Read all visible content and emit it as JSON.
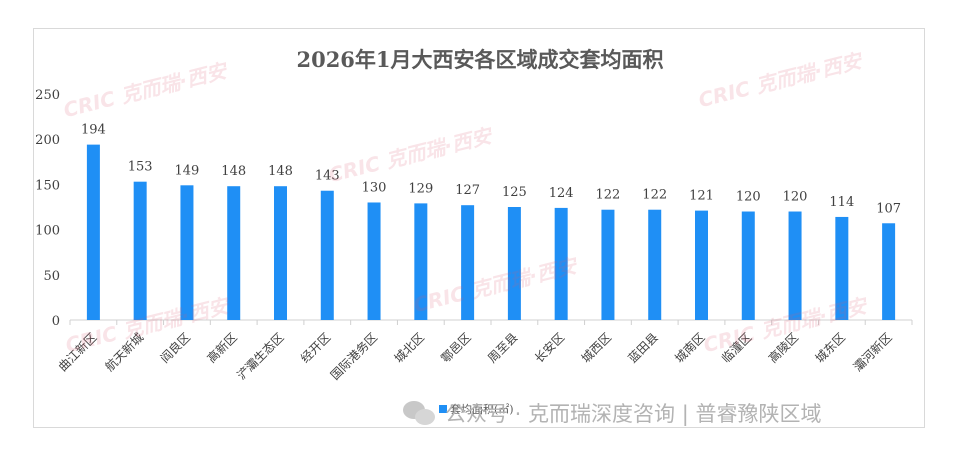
{
  "chart_data": {
    "type": "bar",
    "title": "2026年1月大西安各区域成交套均面积",
    "categories": [
      "曲江新区",
      "航天新城",
      "阎良区",
      "高新区",
      "浐灞生态区",
      "经开区",
      "国际港务区",
      "城北区",
      "鄠邑区",
      "周至县",
      "长安区",
      "城西区",
      "蓝田县",
      "城南区",
      "临潼区",
      "高陵区",
      "城东区",
      "灞河新区"
    ],
    "series": [
      {
        "name": "套均面积(㎡)",
        "values": [
          194,
          153,
          149,
          148,
          148,
          143,
          130,
          129,
          127,
          125,
          124,
          122,
          122,
          121,
          120,
          120,
          114,
          107
        ]
      }
    ],
    "ylim": [
      0,
      250
    ],
    "yticks": [
      0,
      50,
      100,
      150,
      200,
      250
    ],
    "grid": false,
    "legend_position": "bottom-center",
    "bar_color": "#1f8ff5"
  },
  "watermark": {
    "text": "CRIC 克而瑞·西安"
  },
  "footer": {
    "text": "公众号 · 克而瑞深度咨询 | 普睿豫陕区域",
    "icon": "wechat-icon"
  }
}
